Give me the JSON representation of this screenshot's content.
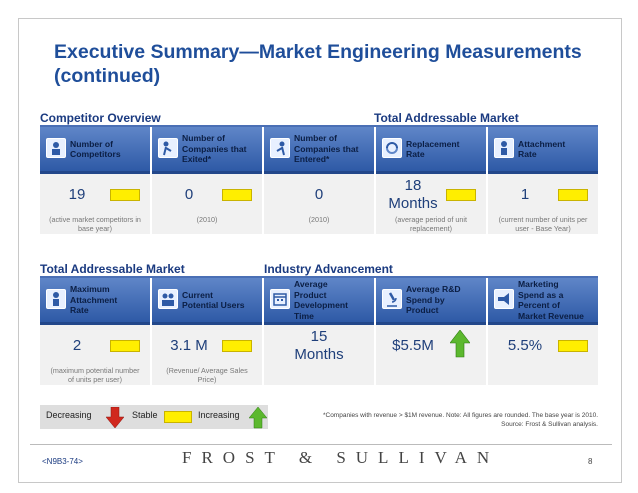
{
  "title": "Executive Summary—Market Engineering Measurements (continued)",
  "sections": {
    "competitor_overview": "Competitor Overview",
    "total_addressable_market_top": "Total Addressable Market",
    "total_addressable_market_bottom": "Total Addressable Market",
    "industry_advancement": "Industry Advancement"
  },
  "cards_top": [
    {
      "label": "Number of\nCompetitors",
      "value": "19",
      "note": "(active market competitors in\nbase year)",
      "icon": "competitors-icon",
      "indicator": "stable"
    },
    {
      "label": "Number of\nCompanies that\nExited*",
      "value": "0",
      "note": "(2010)",
      "icon": "exit-icon",
      "indicator": "stable"
    },
    {
      "label": "Number of\nCompanies that\nEntered*",
      "value": "0",
      "note": "(2010)",
      "icon": "enter-icon",
      "indicator": "none"
    },
    {
      "label": "Replacement\nRate",
      "value": "18\nMonths",
      "note": "(average period of unit\nreplacement)",
      "icon": "replacement-icon",
      "indicator": "stable"
    },
    {
      "label": "Attachment\nRate",
      "value": "1",
      "note": "(current number of units per\nuser - Base Year)",
      "icon": "attachment-icon",
      "indicator": "stable"
    }
  ],
  "cards_bottom": [
    {
      "label": "Maximum\nAttachment\nRate",
      "value": "2",
      "note": "(maximum potential number\nof units per user)",
      "icon": "max-attachment-icon",
      "indicator": "stable"
    },
    {
      "label": "Current\nPotential Users",
      "value": "3.1 M",
      "note": "(Revenue/ Average Sales\nPrice)",
      "icon": "users-icon",
      "indicator": "stable"
    },
    {
      "label": "Average\nProduct\nDevelopment\nTime",
      "value": "15\nMonths",
      "note": "",
      "icon": "calendar-icon",
      "indicator": "none"
    },
    {
      "label": "Average R&D\nSpend by\nProduct",
      "value": "$5.5M",
      "note": "",
      "icon": "microscope-icon",
      "indicator": "increasing"
    },
    {
      "label": "Marketing\nSpend as a\nPercent of\nMarket Revenue",
      "value": "5.5%",
      "note": "",
      "icon": "megaphone-icon",
      "indicator": "stable"
    }
  ],
  "legend": {
    "decreasing": "Decreasing",
    "stable": "Stable",
    "increasing": "Increasing"
  },
  "footnote": "*Companies with revenue > $1M revenue. Note: All figures are rounded. The base year is 2010.\nSource: Frost & Sullivan analysis.",
  "footer": {
    "code": "<N9B3-74>",
    "brand": "FROST & SULLIVAN",
    "page": "8"
  },
  "colors": {
    "title": "#1f4e9a",
    "header_gradient_top": "#5f86c8",
    "header_gradient_bottom": "#2e5aa6",
    "stable": "#ffee00",
    "increasing": "#5cb82e",
    "decreasing": "#d0281e"
  }
}
